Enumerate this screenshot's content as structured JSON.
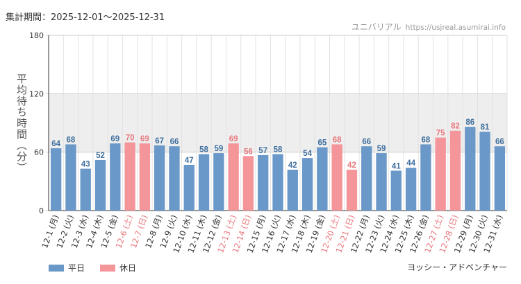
{
  "period_text": "集計期間：2025-12-01～2025-12-31",
  "watermark": {
    "site": "ユニバリアル",
    "url": "https://usjreal.asumirai.info"
  },
  "attraction_name": "ヨッシー・アドベンチャー",
  "colors": {
    "weekday": "#6A98C8",
    "holiday": "#F4959A",
    "band": "#EEEEEE",
    "grid": "#E2E2E2",
    "holiday_label": "#E8787E"
  },
  "chart_data": {
    "type": "bar",
    "title": "",
    "xlabel": "",
    "ylabel": "平均待ち時間（分）",
    "ylim": [
      0,
      180
    ],
    "yticks": [
      0,
      60,
      120,
      180
    ],
    "band": [
      60,
      120
    ],
    "legend": {
      "placement": "bottom-left",
      "entries": [
        "平日",
        "休日"
      ]
    },
    "categories": [
      "12-1 (月)",
      "12-2 (火)",
      "12-3 (水)",
      "12-4 (木)",
      "12-5 (金)",
      "12-6 (土)",
      "12-7 (日)",
      "12-8 (月)",
      "12-9 (火)",
      "12-10 (水)",
      "12-11 (木)",
      "12-12 (金)",
      "12-13 (土)",
      "12-14 (日)",
      "12-15 (月)",
      "12-16 (火)",
      "12-17 (水)",
      "12-18 (木)",
      "12-19 (金)",
      "12-20 (土)",
      "12-21 (日)",
      "12-22 (月)",
      "12-23 (火)",
      "12-24 (水)",
      "12-25 (木)",
      "12-26 (金)",
      "12-27 (土)",
      "12-28 (日)",
      "12-29 (月)",
      "12-30 (火)",
      "12-31 (水)"
    ],
    "values": [
      64,
      68,
      43,
      52,
      69,
      70,
      69,
      67,
      66,
      47,
      58,
      59,
      69,
      56,
      57,
      58,
      42,
      54,
      65,
      68,
      42,
      66,
      59,
      41,
      44,
      68,
      75,
      82,
      86,
      81,
      66
    ],
    "day_type": [
      "平日",
      "平日",
      "平日",
      "平日",
      "平日",
      "休日",
      "休日",
      "平日",
      "平日",
      "平日",
      "平日",
      "平日",
      "休日",
      "休日",
      "平日",
      "平日",
      "平日",
      "平日",
      "平日",
      "休日",
      "休日",
      "平日",
      "平日",
      "平日",
      "平日",
      "平日",
      "休日",
      "休日",
      "平日",
      "平日",
      "平日"
    ]
  }
}
